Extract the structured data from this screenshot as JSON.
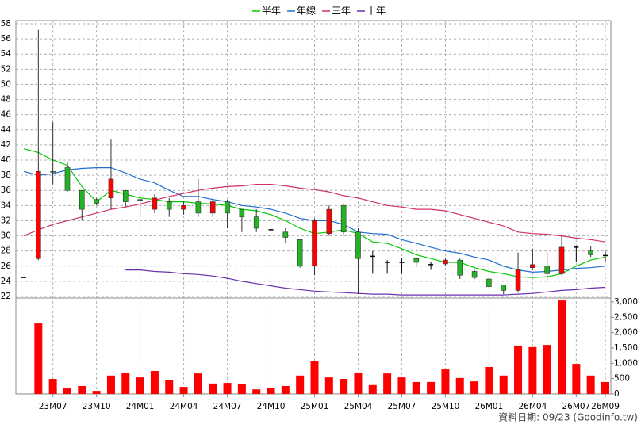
{
  "chart_data": {
    "type": "candlestick",
    "categories": [
      null,
      null,
      "23M07",
      null,
      null,
      "23M10",
      null,
      null,
      "24M01",
      null,
      null,
      "24M04",
      null,
      null,
      "24M07",
      null,
      null,
      "24M10",
      null,
      null,
      "25M01",
      null,
      null,
      "25M04",
      null,
      null,
      "25M07",
      null,
      null,
      "25M10",
      null,
      null,
      "26M01",
      null,
      null,
      "26M04",
      null,
      null,
      "26M07",
      null,
      "26M09"
    ],
    "open": [
      24.5,
      27,
      38.5,
      39,
      36,
      34.8,
      35,
      36,
      34.8,
      33.5,
      34.5,
      33.5,
      34.5,
      33,
      34.5,
      33.5,
      32.5,
      30.8,
      30.5,
      29.5,
      26,
      30.3,
      34,
      30.5,
      27.3,
      26.5,
      26.5,
      27,
      26.2,
      26.3,
      26.8,
      25.3,
      24.3,
      23.5,
      22.8,
      25.8,
      26,
      25,
      28.5,
      28,
      27.4
    ],
    "high": [
      24.5,
      57.2,
      45,
      39.8,
      36,
      35,
      42.7,
      36,
      35.5,
      35.5,
      35,
      34.5,
      37.5,
      35,
      34.8,
      33.5,
      33.5,
      31.5,
      31,
      29.5,
      32.3,
      34,
      34.3,
      31,
      28,
      26.8,
      27,
      27.2,
      26.5,
      27,
      27,
      25.5,
      24.5,
      23.5,
      27.8,
      28.3,
      27.8,
      30.2,
      28.7,
      28.6,
      28
    ],
    "low": [
      24.5,
      26.8,
      36.8,
      35.8,
      32,
      34,
      33.5,
      33.8,
      32.5,
      33,
      32.5,
      32.8,
      32.5,
      32.5,
      31,
      30.5,
      30.5,
      30.3,
      29,
      25.8,
      24.8,
      30,
      30,
      22.3,
      25,
      25,
      25,
      26,
      25.5,
      26,
      24.3,
      24.3,
      23,
      22.3,
      22.5,
      25.5,
      24,
      24.8,
      26.5,
      27.2,
      26.5
    ],
    "close": [
      24.5,
      38.5,
      38.4,
      36,
      33.5,
      34.3,
      37.5,
      34.5,
      34.7,
      35,
      33.5,
      34,
      33,
      34.5,
      33,
      32.5,
      31,
      30.8,
      29.8,
      26,
      32,
      33.5,
      30.5,
      27,
      27.3,
      26.5,
      26.5,
      26.5,
      26.2,
      26.8,
      24.8,
      24.5,
      23.3,
      22.8,
      25.5,
      26.2,
      25,
      28.5,
      28.5,
      27.5,
      27.4
    ],
    "up_color": "#ff0000",
    "down_color": "#22b422",
    "flat_color": "#000000",
    "series": [
      {
        "name": "半年",
        "color": "#00cc00",
        "values": [
          41.5,
          41,
          40,
          39.3,
          36.5,
          34.5,
          36,
          35.5,
          35,
          34.8,
          34.5,
          34.5,
          34.3,
          34.2,
          34,
          33.5,
          33.3,
          32.8,
          32,
          31,
          30.3,
          30.5,
          30.8,
          30.3,
          29.2,
          29,
          28.3,
          27.5,
          27,
          26.5,
          26.5,
          25.8,
          25.3,
          25,
          24.6,
          24.5,
          24.6,
          25,
          26,
          26.8,
          27.2
        ]
      },
      {
        "name": "年線",
        "color": "#1f6fd0",
        "values": [
          38.5,
          38,
          38.2,
          38.7,
          38.9,
          39,
          39,
          38.3,
          37.5,
          37,
          36,
          35.2,
          35.2,
          34.8,
          34.5,
          34,
          33.8,
          33.5,
          33,
          32.3,
          32,
          32,
          31.5,
          30.5,
          30.3,
          30.2,
          29.5,
          29,
          28.5,
          28,
          27.7,
          27.2,
          26.8,
          26,
          25.5,
          25.2,
          25.3,
          25.5,
          25.7,
          25.8,
          26
        ]
      },
      {
        "name": "三年",
        "color": "#d0306a",
        "values": [
          30,
          30.8,
          31.5,
          32,
          32.5,
          33,
          33.5,
          33.8,
          34.2,
          34.7,
          35.2,
          35.6,
          36,
          36.3,
          36.5,
          36.6,
          36.8,
          36.8,
          36.6,
          36.3,
          36.1,
          35.8,
          35.3,
          35,
          34.5,
          34,
          33.8,
          33.5,
          33.5,
          33.3,
          32.8,
          32.3,
          31.8,
          31.3,
          30.5,
          30.3,
          30.2,
          30,
          29.7,
          29.5,
          29.2
        ]
      },
      {
        "name": "十年",
        "color": "#6a2fb0",
        "values": [
          null,
          null,
          null,
          null,
          null,
          null,
          null,
          25.5,
          25.5,
          25.3,
          25.2,
          25,
          24.9,
          24.7,
          24.4,
          24,
          23.7,
          23.4,
          23.1,
          22.9,
          22.7,
          22.6,
          22.5,
          22.4,
          22.3,
          22.3,
          22.2,
          22.2,
          22.2,
          22.2,
          22.2,
          22.2,
          22.2,
          22.2,
          22.3,
          22.4,
          22.6,
          22.8,
          22.9,
          23.1,
          23.2
        ]
      }
    ],
    "volume": {
      "color": "#ff0000",
      "values": [
        null,
        2300,
        490,
        180,
        260,
        100,
        600,
        680,
        540,
        750,
        440,
        230,
        670,
        340,
        360,
        310,
        150,
        180,
        260,
        600,
        1060,
        540,
        490,
        700,
        290,
        670,
        540,
        390,
        390,
        800,
        520,
        410,
        880,
        600,
        1580,
        1530,
        1600,
        3050,
        980,
        600,
        390
      ]
    },
    "ylim": [
      22,
      58
    ],
    "yticks": [
      22,
      24,
      26,
      28,
      30,
      32,
      34,
      36,
      38,
      40,
      42,
      44,
      46,
      48,
      50,
      52,
      54,
      56,
      58
    ],
    "y2lim": [
      0,
      3000
    ],
    "y2ticks": [
      0,
      500,
      {
        "value": 1000,
        "label": "1,000"
      },
      {
        "value": 1500,
        "label": "1,500"
      },
      {
        "value": 2000,
        "label": "2,000"
      },
      {
        "value": 2500,
        "label": "2,500"
      },
      {
        "value": 3000,
        "label": "3,000"
      }
    ],
    "grid": true,
    "source": "資料日期: 09/23 (Goodinfo.tw)"
  }
}
